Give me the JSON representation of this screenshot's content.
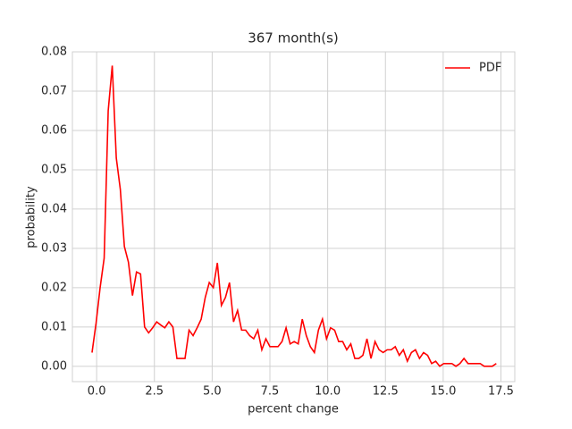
{
  "chart_data": {
    "type": "line",
    "title": "367 month(s)",
    "xlabel": "percent change",
    "ylabel": "probability",
    "x": [
      -0.2,
      -0.025,
      0.15,
      0.325,
      0.5,
      0.675,
      0.85,
      1.025,
      1.2,
      1.375,
      1.55,
      1.725,
      1.9,
      2.075,
      2.25,
      2.425,
      2.6,
      2.775,
      2.95,
      3.125,
      3.3,
      3.475,
      3.65,
      3.825,
      4.0,
      4.175,
      4.35,
      4.525,
      4.7,
      4.875,
      5.05,
      5.225,
      5.4,
      5.575,
      5.75,
      5.925,
      6.1,
      6.275,
      6.45,
      6.625,
      6.8,
      6.975,
      7.15,
      7.325,
      7.5,
      7.675,
      7.85,
      8.025,
      8.2,
      8.375,
      8.55,
      8.725,
      8.9,
      9.075,
      9.25,
      9.425,
      9.6,
      9.775,
      9.95,
      10.125,
      10.3,
      10.475,
      10.65,
      10.825,
      11.0,
      11.175,
      11.35,
      11.525,
      11.7,
      11.875,
      12.05,
      12.225,
      12.4,
      12.575,
      12.75,
      12.925,
      13.1,
      13.275,
      13.45,
      13.625,
      13.8,
      13.975,
      14.15,
      14.325,
      14.5,
      14.675,
      14.85,
      15.025,
      15.2,
      15.375,
      15.55,
      15.725,
      15.9,
      16.075,
      16.25,
      16.425,
      16.6,
      16.775,
      16.95,
      17.125,
      17.3
    ],
    "series": [
      {
        "name": "PDF",
        "color": "#ff0000",
        "values": [
          0.0035,
          0.011,
          0.02,
          0.0275,
          0.065,
          0.0765,
          0.053,
          0.045,
          0.0305,
          0.0265,
          0.018,
          0.024,
          0.0235,
          0.01,
          0.0085,
          0.0098,
          0.0113,
          0.0105,
          0.0098,
          0.0113,
          0.01,
          0.002,
          0.002,
          0.002,
          0.0092,
          0.0078,
          0.0098,
          0.012,
          0.0175,
          0.0213,
          0.02,
          0.0263,
          0.0155,
          0.0175,
          0.0213,
          0.0113,
          0.0142,
          0.0092,
          0.0092,
          0.0078,
          0.007,
          0.0092,
          0.0042,
          0.007,
          0.005,
          0.005,
          0.005,
          0.0063,
          0.0098,
          0.0057,
          0.0063,
          0.0057,
          0.012,
          0.0078,
          0.005,
          0.0035,
          0.0092,
          0.012,
          0.007,
          0.0098,
          0.0092,
          0.0063,
          0.0063,
          0.0042,
          0.0057,
          0.002,
          0.002,
          0.0028,
          0.007,
          0.002,
          0.0063,
          0.0042,
          0.0035,
          0.0042,
          0.0042,
          0.005,
          0.0028,
          0.0042,
          0.0013,
          0.0035,
          0.0042,
          0.002,
          0.0035,
          0.0028,
          0.0007,
          0.0013,
          0.0,
          0.0007,
          0.0007,
          0.0007,
          0.0,
          0.0007,
          0.002,
          0.0007,
          0.0007,
          0.0007,
          0.0007,
          0.0,
          0.0,
          0.0,
          0.0007
        ]
      }
    ],
    "xlim": [
      -1.05,
      18.1
    ],
    "ylim": [
      -0.0039,
      0.08
    ],
    "xticks": [
      {
        "value": 0,
        "label": "0.0"
      },
      2.5,
      {
        "value": 5,
        "label": "5.0"
      },
      7.5,
      {
        "value": 10,
        "label": "10.0"
      },
      12.5,
      {
        "value": 15,
        "label": "15.0"
      },
      17.5
    ],
    "yticks": [
      {
        "value": 0,
        "label": "0.00"
      },
      {
        "value": 0.01,
        "label": "0.01"
      },
      {
        "value": 0.02,
        "label": "0.02"
      },
      {
        "value": 0.03,
        "label": "0.03"
      },
      {
        "value": 0.04,
        "label": "0.04"
      },
      {
        "value": 0.05,
        "label": "0.05"
      },
      {
        "value": 0.06,
        "label": "0.06"
      },
      {
        "value": 0.07,
        "label": "0.07"
      },
      {
        "value": 0.08,
        "label": "0.08"
      }
    ],
    "grid": true,
    "legend": "upper right"
  }
}
